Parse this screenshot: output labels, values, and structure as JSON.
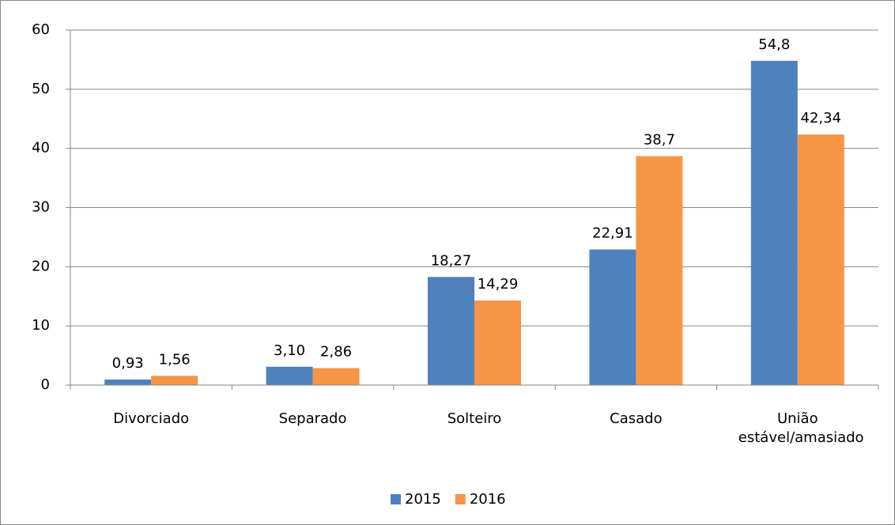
{
  "chart_data": {
    "type": "bar",
    "categories": [
      "Divorciado",
      "Separado",
      "Solteiro",
      "Casado",
      "União estável/amasiado"
    ],
    "series": [
      {
        "name": "2015",
        "color": "#4f81bd",
        "values": [
          0.93,
          3.1,
          18.27,
          22.91,
          54.8
        ],
        "value_labels": [
          "0,93",
          "3,10",
          "18,27",
          "22,91",
          "54,8"
        ]
      },
      {
        "name": "2016",
        "color": "#f79646",
        "values": [
          1.56,
          2.86,
          14.29,
          38.7,
          42.34
        ],
        "value_labels": [
          "1,56",
          "2,86",
          "14,29",
          "38,7",
          "42,34"
        ]
      }
    ],
    "ylim": [
      0,
      60
    ],
    "yticks": [
      0,
      10,
      20,
      30,
      40,
      50,
      60
    ],
    "grid": true,
    "legend": "bottom"
  }
}
